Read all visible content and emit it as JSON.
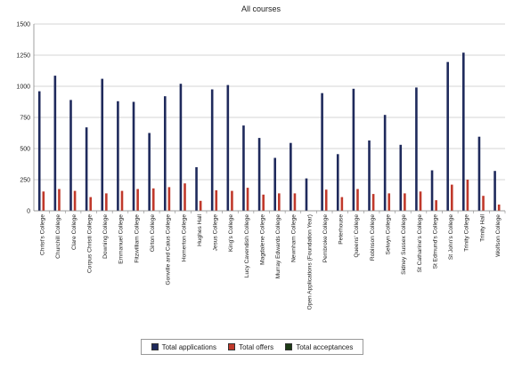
{
  "chart_data": {
    "type": "bar",
    "title": "All courses",
    "ylim": [
      0,
      1500
    ],
    "yticks": [
      "0",
      "250",
      "500",
      "750",
      "1000",
      "1250",
      "1500"
    ],
    "grid": true,
    "legend_position": "bottom",
    "categories": [
      "Christ's College",
      "Churchill College",
      "Clare College",
      "Corpus Christi College",
      "Downing College",
      "Emmanuel College",
      "Fitzwilliam College",
      "Girton College",
      "Gonville and Caius College",
      "Homerton College",
      "Hughes Hall",
      "Jesus College",
      "King's College",
      "Lucy Cavendish College",
      "Magdalene College",
      "Murray Edwards College",
      "Newnham College",
      "Open Applications (Foundation Year)",
      "Pembroke College",
      "Peterhouse",
      "Queens' College",
      "Robinson College",
      "Selwyn College",
      "Sidney Sussex College",
      "St Catharine's College",
      "St Edmund's College",
      "St John's College",
      "Trinity College",
      "Trinity Hall",
      "Wolfson College"
    ],
    "series": [
      {
        "name": "Total applications",
        "color": "#1f2a5c",
        "values": [
          960,
          1085,
          890,
          670,
          1060,
          880,
          875,
          625,
          920,
          1020,
          350,
          975,
          1010,
          685,
          585,
          425,
          545,
          260,
          945,
          455,
          980,
          565,
          770,
          530,
          990,
          325,
          1195,
          1270,
          595,
          320
        ]
      },
      {
        "name": "Total offers",
        "color": "#c0392b",
        "values": [
          155,
          175,
          160,
          110,
          140,
          160,
          175,
          180,
          190,
          220,
          80,
          165,
          160,
          185,
          130,
          140,
          140,
          0,
          170,
          110,
          175,
          135,
          140,
          140,
          155,
          85,
          210,
          250,
          120,
          50
        ]
      },
      {
        "name": "Total acceptances",
        "color": "#1d3b16",
        "values": [
          0,
          0,
          0,
          0,
          0,
          0,
          0,
          0,
          0,
          0,
          0,
          0,
          0,
          0,
          0,
          0,
          0,
          0,
          0,
          0,
          0,
          0,
          0,
          0,
          0,
          0,
          0,
          0,
          0,
          0
        ]
      }
    ]
  }
}
